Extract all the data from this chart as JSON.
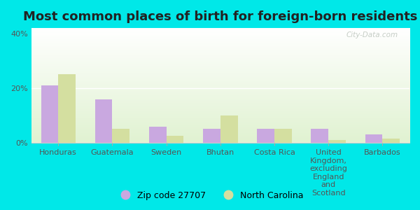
{
  "title": "Most common places of birth for foreign-born residents",
  "categories": [
    "Honduras",
    "Guatemala",
    "Sweden",
    "Bhutan",
    "Costa Rica",
    "United\nKingdom,\nexcluding\nEngland\nand\nScotland",
    "Barbados"
  ],
  "zip_values": [
    21,
    16,
    6,
    5,
    5,
    5,
    3
  ],
  "nc_values": [
    25,
    5,
    2.5,
    10,
    5,
    1,
    1.5
  ],
  "zip_color": "#c9a8e0",
  "nc_color": "#d4dfa0",
  "outer_background": "#00e8e8",
  "ylim": [
    0,
    42
  ],
  "yticks": [
    0,
    20,
    40
  ],
  "ytick_labels": [
    "0%",
    "20%",
    "40%"
  ],
  "legend_zip_label": "Zip code 27707",
  "legend_nc_label": "North Carolina",
  "watermark": "City-Data.com",
  "title_fontsize": 13,
  "axis_fontsize": 8,
  "legend_fontsize": 9,
  "bar_width": 0.32
}
